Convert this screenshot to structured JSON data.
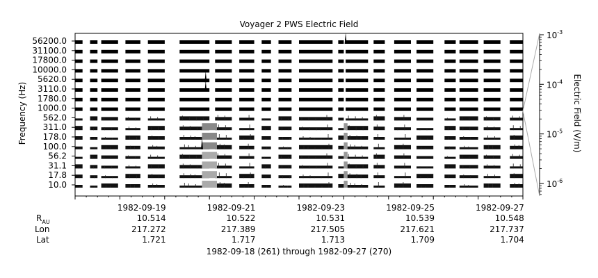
{
  "chart_data": {
    "type": "line",
    "title": "Voyager 2 PWS Electric Field",
    "ylabel": "Frequency (Hz)",
    "y2label": "Electric Field (V/m)",
    "channels": [
      "56200.0",
      "31100.0",
      "17800.0",
      "10000.0",
      "5620.0",
      "3110.0",
      "1780.0",
      "1000.0",
      "562.0",
      "311.0",
      "178.0",
      "100.0",
      "56.2",
      "31.1",
      "17.8",
      "10.0"
    ],
    "xlim": [
      "1982-09-18",
      "1982-09-28"
    ],
    "date_ticks": [
      {
        "date": "1982-09-19",
        "label": "1982-09-19",
        "r_au": "10.514",
        "lon": "217.272",
        "lat": "1.721"
      },
      {
        "date": "1982-09-21",
        "label": "1982-09-21",
        "r_au": "10.522",
        "lon": "217.389",
        "lat": "1.717"
      },
      {
        "date": "1982-09-23",
        "label": "1982-09-23",
        "r_au": "10.531",
        "lon": "217.505",
        "lat": "1.713"
      },
      {
        "date": "1982-09-25",
        "label": "1982-09-25",
        "r_au": "10.539",
        "lon": "217.621",
        "lat": "1.709"
      },
      {
        "date": "1982-09-27",
        "label": "1982-09-27",
        "r_au": "10.548",
        "lon": "217.737",
        "lat": "1.704"
      }
    ],
    "row_labels": {
      "r": "R",
      "r_sub": "AU",
      "lon": "Lon",
      "lat": "Lat"
    },
    "coverage": [
      [
        "1982-09-18 00:00",
        "1982-09-18 04:00"
      ],
      [
        "1982-09-18 08:00",
        "1982-09-18 12:00"
      ],
      [
        "1982-09-18 14:00",
        "1982-09-18 23:00"
      ],
      [
        "1982-09-19 03:00",
        "1982-09-19 11:00"
      ],
      [
        "1982-09-19 15:00",
        "1982-09-20 00:00"
      ],
      [
        "1982-09-20 08:00",
        "1982-09-21 00:00"
      ],
      [
        "1982-09-21 03:00",
        "1982-09-21 12:00"
      ],
      [
        "1982-09-21 16:00",
        "1982-09-22 00:00"
      ],
      [
        "1982-09-22 04:00",
        "1982-09-22 09:00"
      ],
      [
        "1982-09-22 13:00",
        "1982-09-22 20:00"
      ],
      [
        "1982-09-23 00:00",
        "1982-09-23 18:00"
      ],
      [
        "1982-09-23 21:00",
        "1982-09-24 00:00"
      ],
      [
        "1982-09-24 01:00",
        "1982-09-24 13:00"
      ],
      [
        "1982-09-24 16:00",
        "1982-09-24 22:00"
      ],
      [
        "1982-09-25 03:00",
        "1982-09-25 12:00"
      ],
      [
        "1982-09-25 15:00",
        "1982-09-26 00:00"
      ],
      [
        "1982-09-26 06:00",
        "1982-09-26 12:00"
      ],
      [
        "1982-09-26 14:00",
        "1982-09-27 00:00"
      ],
      [
        "1982-09-27 03:00",
        "1982-09-27 12:00"
      ],
      [
        "1982-09-27 17:00",
        "1982-09-28 00:00"
      ]
    ],
    "events": [
      {
        "time": "1982-09-20 22:00",
        "channel": "5620.0",
        "level": "1e-4"
      },
      {
        "time": "1982-09-20 22:00",
        "channel": "3110.0",
        "level": "1e-4"
      },
      {
        "time": "1982-09-24 01:00",
        "channel": "56200.0",
        "level": "1e-4"
      },
      {
        "time": "1982-09-20 20:00",
        "channel": "100.0",
        "level": "1e-5"
      }
    ],
    "colorbar": {
      "scale": "log",
      "range": [
        "1e-6",
        "1e-3"
      ],
      "ticks": [
        {
          "value": "1e-3",
          "mantissa": "10",
          "exp": "-3"
        },
        {
          "value": "1e-4",
          "mantissa": "10",
          "exp": "-4"
        },
        {
          "value": "1e-5",
          "mantissa": "10",
          "exp": "-5"
        },
        {
          "value": "1e-6",
          "mantissa": "10",
          "exp": "-6"
        }
      ]
    },
    "footer": "1982-09-18 (261) through 1982-09-27 (270)"
  }
}
